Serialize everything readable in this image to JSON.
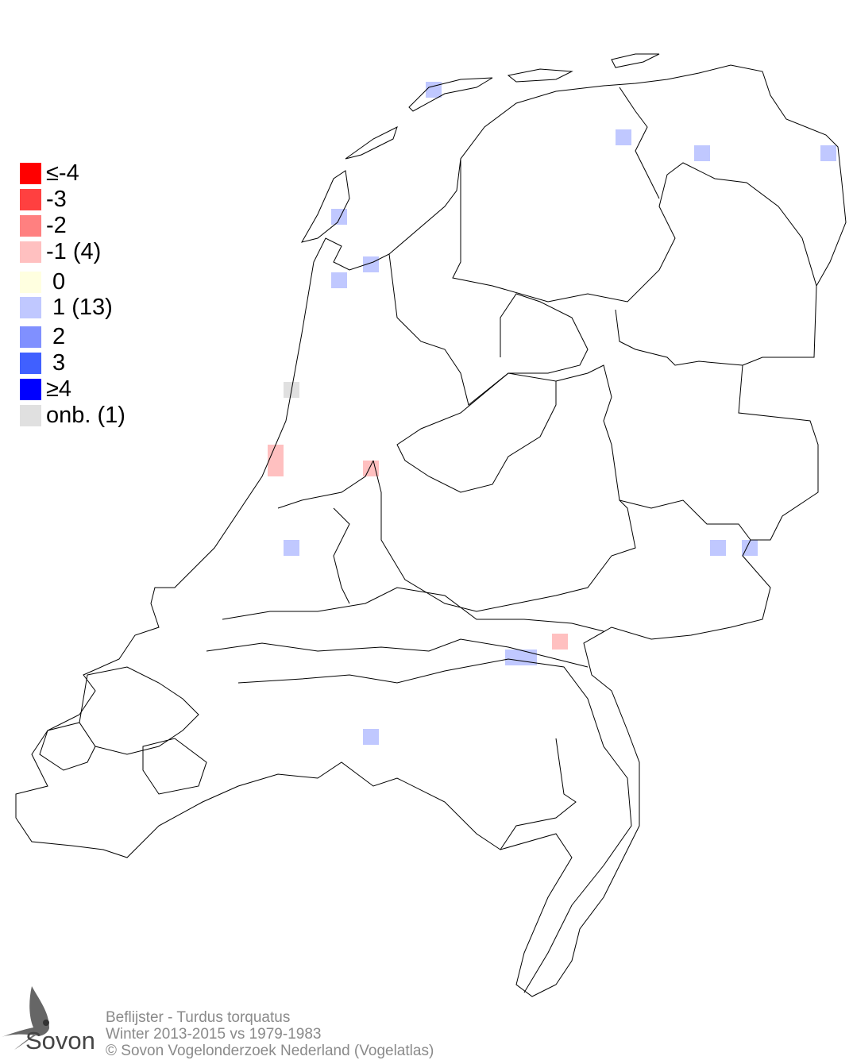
{
  "legend": {
    "items": [
      {
        "label": "≤-4",
        "color": "#ff0000",
        "value": -4
      },
      {
        "label": "-3",
        "color": "#ff4040",
        "value": -3
      },
      {
        "label": "-2",
        "color": "#ff8080",
        "value": -2
      },
      {
        "label": "-1 (4)",
        "color": "#ffc0c0",
        "value": -1
      },
      {
        "label": " 0",
        "color": "#ffffe0",
        "value": 0
      },
      {
        "label": " 1 (13)",
        "color": "#c0c8ff",
        "value": 1
      },
      {
        "label": " 2",
        "color": "#8090ff",
        "value": 2
      },
      {
        "label": " 3",
        "color": "#4060ff",
        "value": 3
      },
      {
        "label": "≥4",
        "color": "#0000ff",
        "value": 4
      },
      {
        "label": "onb. (1)",
        "color": "#e0e0e0",
        "value": "onb"
      }
    ]
  },
  "footer": {
    "species": "Beflijster - Turdus torquatus",
    "period": "Winter 2013-2015 vs 1979-1983",
    "copyright": "© Sovon Vogelonderzoek Nederland (Vogelatlas)"
  },
  "logo": {
    "text": "Sovon"
  }
}
